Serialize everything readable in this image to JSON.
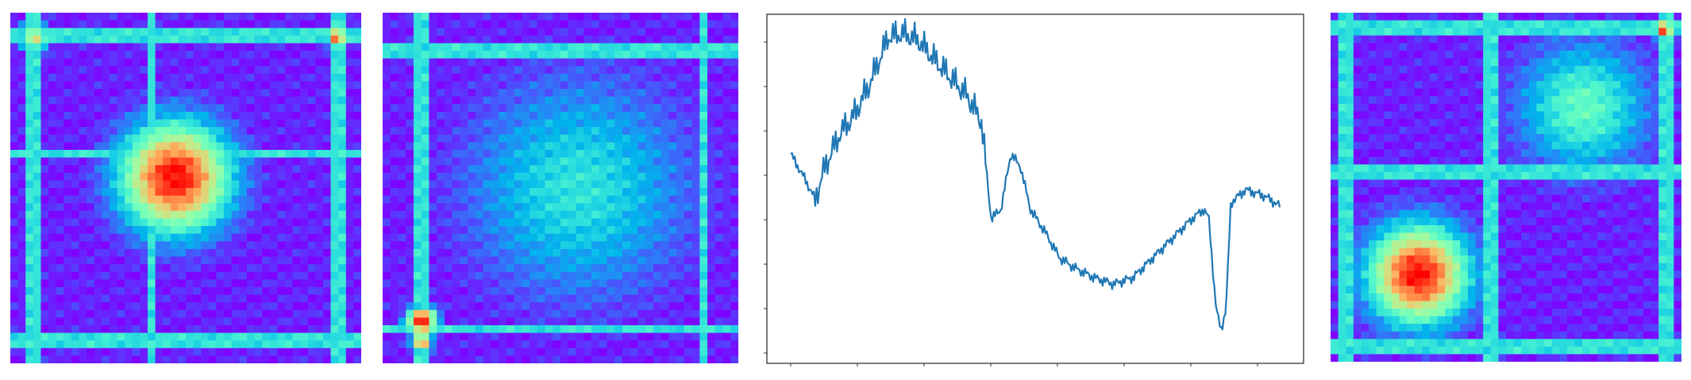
{
  "chart_data": [
    {
      "type": "heatmap",
      "colormap": "rainbow",
      "axes_visible": false,
      "hotspots": [
        {
          "row": 0.47,
          "col": 0.47,
          "spread": 0.11,
          "level": 1.0
        },
        {
          "row": 0.07,
          "col": 0.93,
          "spread": 0.02,
          "level": 0.95
        },
        {
          "row": 0.07,
          "col": 0.07,
          "spread": 0.03,
          "level": 0.65
        }
      ],
      "stripes": [
        0.07,
        0.4,
        0.93
      ]
    },
    {
      "type": "heatmap",
      "colormap": "rainbow",
      "axes_visible": false,
      "hotspots": [
        {
          "row": 0.88,
          "col": 0.11,
          "spread": 0.03,
          "level": 1.0
        },
        {
          "row": 0.94,
          "col": 0.11,
          "spread": 0.02,
          "level": 0.85
        },
        {
          "row": 0.5,
          "col": 0.55,
          "spread": 0.22,
          "level": 0.35
        }
      ],
      "stripes": [
        0.11,
        0.9
      ]
    },
    {
      "type": "line",
      "color": "#1f77b4",
      "grid": false,
      "tick_labels_visible": false,
      "x_count": 360,
      "trend_points": [
        [
          0.0,
          0.6
        ],
        [
          0.03,
          0.52
        ],
        [
          0.05,
          0.46
        ],
        [
          0.07,
          0.56
        ],
        [
          0.1,
          0.66
        ],
        [
          0.13,
          0.72
        ],
        [
          0.16,
          0.81
        ],
        [
          0.2,
          0.96
        ],
        [
          0.23,
          0.97
        ],
        [
          0.26,
          0.95
        ],
        [
          0.3,
          0.88
        ],
        [
          0.33,
          0.83
        ],
        [
          0.36,
          0.78
        ],
        [
          0.39,
          0.7
        ],
        [
          0.41,
          0.4
        ],
        [
          0.43,
          0.43
        ],
        [
          0.45,
          0.6
        ],
        [
          0.47,
          0.56
        ],
        [
          0.49,
          0.43
        ],
        [
          0.52,
          0.36
        ],
        [
          0.55,
          0.28
        ],
        [
          0.58,
          0.25
        ],
        [
          0.62,
          0.22
        ],
        [
          0.66,
          0.2
        ],
        [
          0.7,
          0.22
        ],
        [
          0.74,
          0.28
        ],
        [
          0.78,
          0.34
        ],
        [
          0.82,
          0.4
        ],
        [
          0.845,
          0.43
        ],
        [
          0.855,
          0.4
        ],
        [
          0.87,
          0.12
        ],
        [
          0.88,
          0.06
        ],
        [
          0.89,
          0.12
        ],
        [
          0.9,
          0.45
        ],
        [
          0.93,
          0.49
        ],
        [
          0.97,
          0.47
        ],
        [
          1.0,
          0.44
        ]
      ],
      "ylim": [
        0,
        1
      ]
    },
    {
      "type": "heatmap",
      "colormap": "rainbow",
      "axes_visible": false,
      "hotspots": [
        {
          "row": 0.75,
          "col": 0.25,
          "spread": 0.1,
          "level": 1.0
        },
        {
          "row": 0.27,
          "col": 0.72,
          "spread": 0.13,
          "level": 0.45
        },
        {
          "row": 0.05,
          "col": 0.95,
          "spread": 0.02,
          "level": 0.95
        }
      ],
      "stripes": [
        0.05,
        0.46,
        0.95
      ]
    }
  ]
}
